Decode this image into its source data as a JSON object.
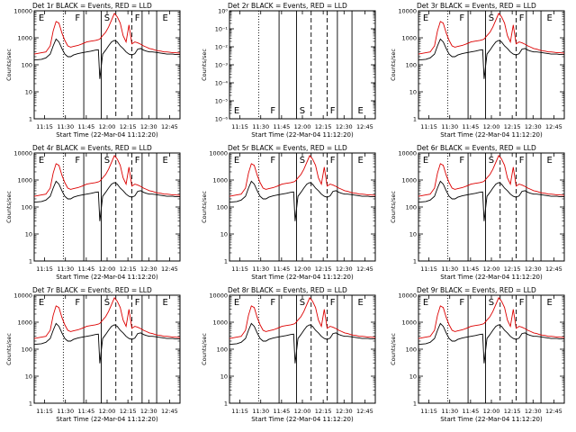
{
  "figure": {
    "xlabel": "Start Time (22-Mar-04 11:12:20)",
    "ylabel": "Counts/sec"
  },
  "chart_data": [
    {
      "type": "line",
      "title": "Det 1r BLACK = Events, RED = LLD",
      "xlabel": "Start Time (22-Mar-04 11:12:20)",
      "ylabel": "Counts/sec",
      "yscale": "log",
      "ylim": [
        1,
        10000
      ],
      "xlim": [
        0,
        100
      ],
      "xticks": [
        "11:15",
        "11:30",
        "11:45",
        "12:00",
        "12:15",
        "12:30",
        "12:45"
      ],
      "yticks": [
        "1",
        "10",
        "100",
        "1000",
        "10000"
      ],
      "markers": [
        "E",
        "F",
        "S",
        "F",
        "E"
      ],
      "has_data": true
    },
    {
      "type": "line",
      "title": "Det 2r BLACK = Events, RED = LLD",
      "xlabel": "Start Time (22-Mar-04 11:12:20)",
      "ylabel": "Counts/sec",
      "yscale": "log",
      "ylim": [
        1e-06,
        1
      ],
      "xlim": [
        0,
        100
      ],
      "xticks": [
        "11:15",
        "11:30",
        "11:45",
        "12:00",
        "12:15",
        "12:30",
        "12:45"
      ],
      "yticks": [
        "10⁻⁶",
        "10⁻⁵",
        "10⁻⁴",
        "10⁻³",
        "10⁻²",
        "10⁻¹",
        "10⁰"
      ],
      "markers": [
        "E",
        "F",
        "S",
        "F",
        "E"
      ],
      "has_data": false
    },
    {
      "type": "line",
      "title": "Det 3r BLACK = Events, RED = LLD",
      "xlabel": "Start Time (22-Mar-04 11:12:20)",
      "ylabel": "Counts/sec",
      "yscale": "log",
      "ylim": [
        1,
        10000
      ],
      "xlim": [
        0,
        100
      ],
      "xticks": [
        "11:15",
        "11:30",
        "11:45",
        "12:00",
        "12:15",
        "12:30",
        "12:45"
      ],
      "yticks": [
        "1",
        "10",
        "100",
        "1000",
        "10000"
      ],
      "markers": [
        "E",
        "F",
        "S",
        "F",
        "E"
      ],
      "has_data": true
    },
    {
      "type": "line",
      "title": "Det 4r BLACK = Events, RED = LLD",
      "xlabel": "Start Time (22-Mar-04 11:12:20)",
      "ylabel": "Counts/sec",
      "yscale": "log",
      "ylim": [
        1,
        10000
      ],
      "xlim": [
        0,
        100
      ],
      "xticks": [
        "11:15",
        "11:30",
        "11:45",
        "12:00",
        "12:15",
        "12:30",
        "12:45"
      ],
      "yticks": [
        "1",
        "10",
        "100",
        "1000",
        "10000"
      ],
      "markers": [
        "E",
        "F",
        "S",
        "F",
        "E"
      ],
      "has_data": true
    },
    {
      "type": "line",
      "title": "Det 5r BLACK = Events, RED = LLD",
      "xlabel": "Start Time (22-Mar-04 11:12:20)",
      "ylabel": "Counts/sec",
      "yscale": "log",
      "ylim": [
        1,
        10000
      ],
      "xlim": [
        0,
        100
      ],
      "xticks": [
        "11:15",
        "11:30",
        "11:45",
        "12:00",
        "12:15",
        "12:30",
        "12:45"
      ],
      "yticks": [
        "1",
        "10",
        "100",
        "1000",
        "10000"
      ],
      "markers": [
        "E",
        "F",
        "S",
        "F",
        "E"
      ],
      "has_data": true
    },
    {
      "type": "line",
      "title": "Det 6r BLACK = Events, RED = LLD",
      "xlabel": "Start Time (22-Mar-04 11:12:20)",
      "ylabel": "Counts/sec",
      "yscale": "log",
      "ylim": [
        1,
        10000
      ],
      "xlim": [
        0,
        100
      ],
      "xticks": [
        "11:15",
        "11:30",
        "11:45",
        "12:00",
        "12:15",
        "12:30",
        "12:45"
      ],
      "yticks": [
        "1",
        "10",
        "100",
        "1000",
        "10000"
      ],
      "markers": [
        "E",
        "F",
        "S",
        "F",
        "E"
      ],
      "has_data": true
    },
    {
      "type": "line",
      "title": "Det 7r BLACK = Events, RED = LLD",
      "xlabel": "Start Time (22-Mar-04 11:12:20)",
      "ylabel": "Counts/sec",
      "yscale": "log",
      "ylim": [
        1,
        10000
      ],
      "xlim": [
        0,
        100
      ],
      "xticks": [
        "11:15",
        "11:30",
        "11:45",
        "12:00",
        "12:15",
        "12:30",
        "12:45"
      ],
      "yticks": [
        "1",
        "10",
        "100",
        "1000",
        "10000"
      ],
      "markers": [
        "E",
        "F",
        "S",
        "F",
        "E"
      ],
      "has_data": true
    },
    {
      "type": "line",
      "title": "Det 8r BLACK = Events, RED = LLD",
      "xlabel": "Start Time (22-Mar-04 11:12:20)",
      "ylabel": "Counts/sec",
      "yscale": "log",
      "ylim": [
        1,
        10000
      ],
      "xlim": [
        0,
        100
      ],
      "xticks": [
        "11:15",
        "11:30",
        "11:45",
        "12:00",
        "12:15",
        "12:30",
        "12:45"
      ],
      "yticks": [
        "1",
        "10",
        "100",
        "1000",
        "10000"
      ],
      "markers": [
        "E",
        "F",
        "S",
        "F",
        "E"
      ],
      "has_data": true
    },
    {
      "type": "line",
      "title": "Det 9r BLACK = Events, RED = LLD",
      "xlabel": "Start Time (22-Mar-04 11:12:20)",
      "ylabel": "Counts/sec",
      "yscale": "log",
      "ylim": [
        1,
        10000
      ],
      "xlim": [
        0,
        100
      ],
      "xticks": [
        "11:15",
        "11:30",
        "11:45",
        "12:00",
        "12:15",
        "12:30",
        "12:45"
      ],
      "yticks": [
        "1",
        "10",
        "100",
        "1000",
        "10000"
      ],
      "markers": [
        "E",
        "F",
        "S",
        "F",
        "E"
      ],
      "has_data": true
    }
  ],
  "series": {
    "events": {
      "name": "Events",
      "color": "#000000",
      "x": [
        0,
        5,
        8,
        11,
        13,
        15,
        17,
        19,
        21,
        23,
        25,
        27,
        30,
        33,
        36,
        39,
        42,
        44,
        45,
        47,
        49,
        51,
        53,
        55,
        57,
        59,
        61,
        63,
        65,
        67,
        69,
        71,
        73,
        75,
        77,
        79,
        81,
        83,
        85,
        87,
        89,
        91,
        93,
        95,
        97,
        100
      ],
      "y": [
        150,
        160,
        180,
        250,
        500,
        900,
        700,
        400,
        250,
        200,
        200,
        230,
        260,
        280,
        300,
        320,
        350,
        360,
        30,
        250,
        350,
        500,
        700,
        800,
        700,
        500,
        400,
        300,
        250,
        230,
        260,
        380,
        400,
        350,
        320,
        300,
        300,
        290,
        280,
        270,
        260,
        250,
        250,
        250,
        240,
        240
      ]
    },
    "lld": {
      "name": "LLD",
      "color": "#dd0000",
      "x": [
        0,
        5,
        8,
        11,
        13,
        15,
        17,
        19,
        21,
        23,
        25,
        27,
        30,
        33,
        36,
        39,
        42,
        44,
        45,
        47,
        49,
        51,
        53,
        55,
        57,
        59,
        61,
        63,
        65,
        67,
        69,
        71,
        73,
        75,
        77,
        79,
        81,
        83,
        85,
        87,
        89,
        91,
        93,
        95,
        97,
        100
      ],
      "y": [
        250,
        280,
        300,
        500,
        1800,
        4000,
        3500,
        1500,
        800,
        500,
        450,
        480,
        520,
        600,
        700,
        750,
        800,
        850,
        900,
        1200,
        1600,
        2500,
        4500,
        8000,
        6000,
        3500,
        1200,
        700,
        3000,
        600,
        700,
        650,
        580,
        500,
        450,
        400,
        380,
        350,
        330,
        320,
        300,
        300,
        290,
        280,
        280,
        270
      ]
    }
  },
  "vlines": {
    "x": [
      20,
      34,
      46,
      56,
      67,
      74,
      84
    ],
    "style": [
      "dotted",
      "solid",
      "solid",
      "dashed",
      "dashed",
      "solid",
      "solid"
    ]
  },
  "markers_x": [
    3,
    28,
    48,
    69,
    88
  ]
}
